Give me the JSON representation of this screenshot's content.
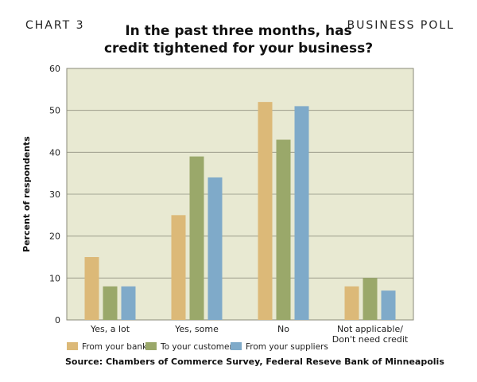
{
  "header": {
    "left_label": "CHART 3",
    "right_label": "BUSINESS POLL"
  },
  "chart_data": {
    "type": "bar",
    "title": "In the past three months, has credit tightened for your business?",
    "title_lines": [
      "In the past three months, has",
      "credit tightened for your business?"
    ],
    "ylabel": "Percent of respondents",
    "xlabel": "",
    "ylim": [
      0,
      60
    ],
    "yticks": [
      0,
      10,
      20,
      30,
      40,
      50,
      60
    ],
    "grid": true,
    "legend_position": "bottom",
    "plot_background": "#e8e9d2",
    "categories": [
      "Yes, a lot",
      "Yes, some",
      "No",
      "Not applicable/ Don't need credit"
    ],
    "category_lines": [
      [
        "Yes, a lot"
      ],
      [
        "Yes, some"
      ],
      [
        "No"
      ],
      [
        "Not applicable/",
        "Don't need credit"
      ]
    ],
    "series": [
      {
        "name": "From your bank",
        "color": "#dcb978",
        "values": [
          15,
          25,
          52,
          8
        ]
      },
      {
        "name": "To your customer",
        "color": "#9aa86a",
        "values": [
          8,
          39,
          43,
          10
        ]
      },
      {
        "name": "From your suppliers",
        "color": "#7faac9",
        "values": [
          8,
          34,
          51,
          7
        ]
      }
    ]
  },
  "source": "Source: Chambers of Commerce Survey, Federal Reseve Bank of Minneapolis"
}
